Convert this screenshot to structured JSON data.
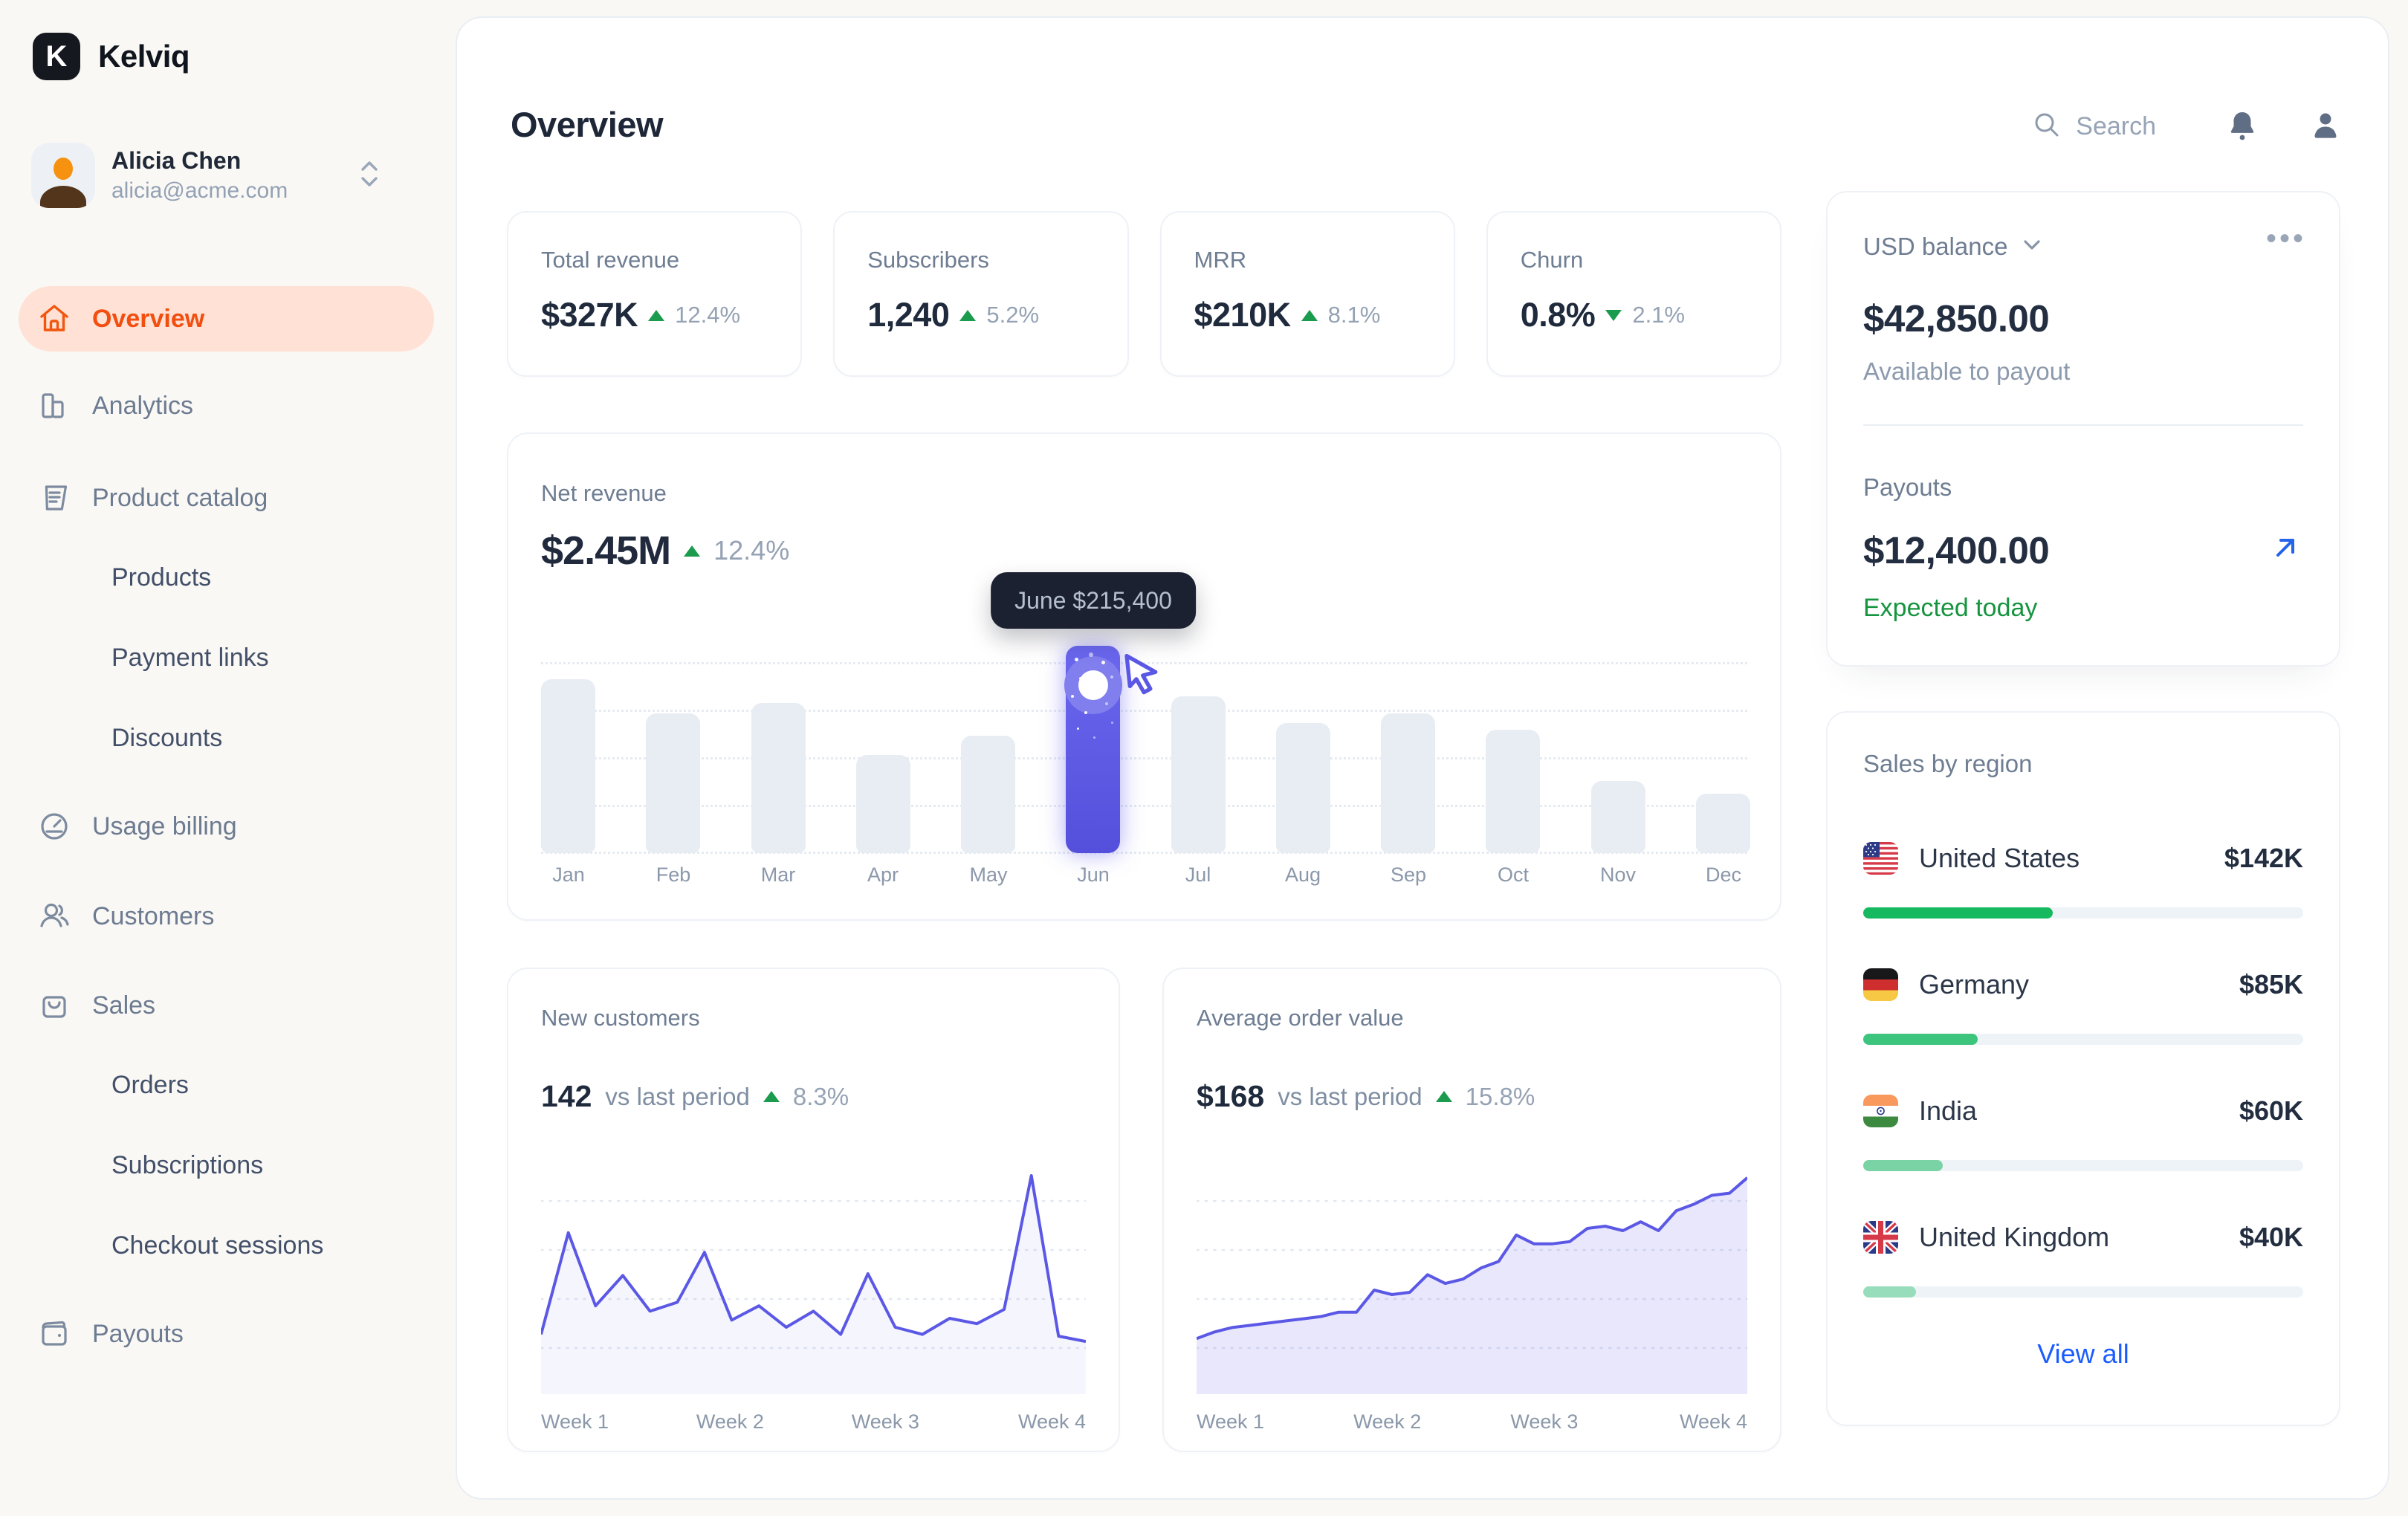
{
  "brand": {
    "name": "Kelviq",
    "logo_letter": "K"
  },
  "user": {
    "name": "Alicia Chen",
    "email": "alicia@acme.com"
  },
  "sidebar": {
    "items": [
      {
        "label": "Overview",
        "type": "parent",
        "icon": "home-icon",
        "active": true
      },
      {
        "label": "Analytics",
        "type": "parent",
        "icon": "bar-chart-icon",
        "active": false
      },
      {
        "label": "Product catalog",
        "type": "parent",
        "icon": "catalog-icon",
        "active": false
      },
      {
        "label": "Products",
        "type": "sub",
        "active": false
      },
      {
        "label": "Payment links",
        "type": "sub",
        "active": false
      },
      {
        "label": "Discounts",
        "type": "sub",
        "active": false
      },
      {
        "label": "Usage billing",
        "type": "parent",
        "icon": "gauge-icon",
        "active": false
      },
      {
        "label": "Customers",
        "type": "parent",
        "icon": "users-icon",
        "active": false
      },
      {
        "label": "Sales",
        "type": "parent",
        "icon": "shopping-bag-icon",
        "active": false
      },
      {
        "label": "Orders",
        "type": "sub",
        "active": false
      },
      {
        "label": "Subscriptions",
        "type": "sub",
        "active": false
      },
      {
        "label": "Checkout sessions",
        "type": "sub",
        "active": false
      },
      {
        "label": "Payouts",
        "type": "parent",
        "icon": "wallet-icon",
        "active": false
      }
    ]
  },
  "topbar": {
    "title": "Overview",
    "search_placeholder": "Search"
  },
  "stats": [
    {
      "label": "Total revenue",
      "value": "$327K",
      "delta": "12.4%",
      "direction": "up"
    },
    {
      "label": "Subscribers",
      "value": "1,240",
      "delta": "5.2%",
      "direction": "up"
    },
    {
      "label": "MRR",
      "value": "$210K",
      "delta": "8.1%",
      "direction": "up"
    },
    {
      "label": "Churn",
      "value": "0.8%",
      "delta": "2.1%",
      "direction": "down"
    }
  ],
  "net_revenue": {
    "label": "Net revenue",
    "value": "$2.45M",
    "delta": "12.4%",
    "direction": "up",
    "tooltip": "June $215,400"
  },
  "new_customers": {
    "label": "New customers",
    "value": "142",
    "compare_label": "vs last period",
    "delta": "8.3%",
    "direction": "up"
  },
  "avg_order_value": {
    "label": "Average order value",
    "value": "$168",
    "compare_label": "vs last period",
    "delta": "15.8%",
    "direction": "up"
  },
  "balance_card": {
    "currency_label": "USD balance",
    "menu_glyph": "•••",
    "amount": "$42,850.00",
    "amount_caption": "Available to payout",
    "payouts_label": "Payouts",
    "payout_amount": "$12,400.00",
    "payout_caption": "Expected today"
  },
  "sales_by_region": {
    "label": "Sales by region",
    "view_all": "View all",
    "regions": [
      {
        "name": "United States",
        "value": "$142K",
        "percent": 43,
        "flag": "us",
        "bar_color": "#16b95f"
      },
      {
        "name": "Germany",
        "value": "$85K",
        "percent": 26,
        "flag": "de",
        "bar_color": "#3ec57d"
      },
      {
        "name": "India",
        "value": "$60K",
        "percent": 18,
        "flag": "in",
        "bar_color": "#79d3a4"
      },
      {
        "name": "United Kingdom",
        "value": "$40K",
        "percent": 12,
        "flag": "gb",
        "bar_color": "#97ddbb"
      }
    ]
  },
  "chart_data": [
    {
      "id": "net_revenue_by_month",
      "type": "bar",
      "title": "Net revenue",
      "categories": [
        "Jan",
        "Feb",
        "Mar",
        "Apr",
        "May",
        "Jun",
        "Jul",
        "Aug",
        "Sep",
        "Oct",
        "Nov",
        "Dec"
      ],
      "values": [
        181000,
        145000,
        156000,
        102000,
        122000,
        215400,
        163000,
        135000,
        145000,
        128000,
        75000,
        62000
      ],
      "unit": "USD",
      "ylim": [
        0,
        230000
      ],
      "grid": "dotted-horizontal",
      "legend": "none",
      "highlight_index": 5,
      "highlight_label": "June $215,400",
      "bar_color": "#e8edf3",
      "highlight_color": "#5a57e5"
    },
    {
      "id": "new_customers_daily",
      "type": "line",
      "title": "New customers",
      "x_labels": [
        "Week 1",
        "Week 2",
        "Week 3",
        "Week 4"
      ],
      "values": [
        11,
        68,
        27,
        44,
        24,
        29,
        57,
        19,
        27,
        15,
        24,
        11,
        45,
        15,
        11,
        20,
        17,
        25,
        100,
        10,
        7
      ],
      "y_unit": "relative scale (peak = 100)",
      "grid": "dotted-horizontal",
      "area_fill": true,
      "stroke": "#5b58e6",
      "fill": "rgba(91,88,230,0.06)"
    },
    {
      "id": "average_order_value_daily",
      "type": "area",
      "title": "Average order value",
      "x_labels": [
        "Week 1",
        "Week 2",
        "Week 3",
        "Week 4"
      ],
      "values": [
        95,
        98,
        100,
        101,
        102,
        103,
        104,
        105,
        107,
        107,
        117,
        115,
        116,
        124,
        120,
        122,
        127,
        130,
        142,
        138,
        138,
        139,
        145,
        146,
        144,
        148,
        144,
        153,
        156,
        160,
        161,
        168
      ],
      "unit": "USD",
      "grid": "dotted-horizontal",
      "stroke": "#5b58e6",
      "fill": "rgba(91,88,230,0.14)"
    }
  ],
  "colors": {
    "accent_orange": "#f14e10",
    "active_pill_bg": "#ffe1d5",
    "indigo_highlight": "#5a57e5",
    "positive_green": "#1a9b4e",
    "link_blue": "#1a5cff",
    "tooltip_bg": "#1b2130",
    "page_bg": "#faf8f4"
  }
}
